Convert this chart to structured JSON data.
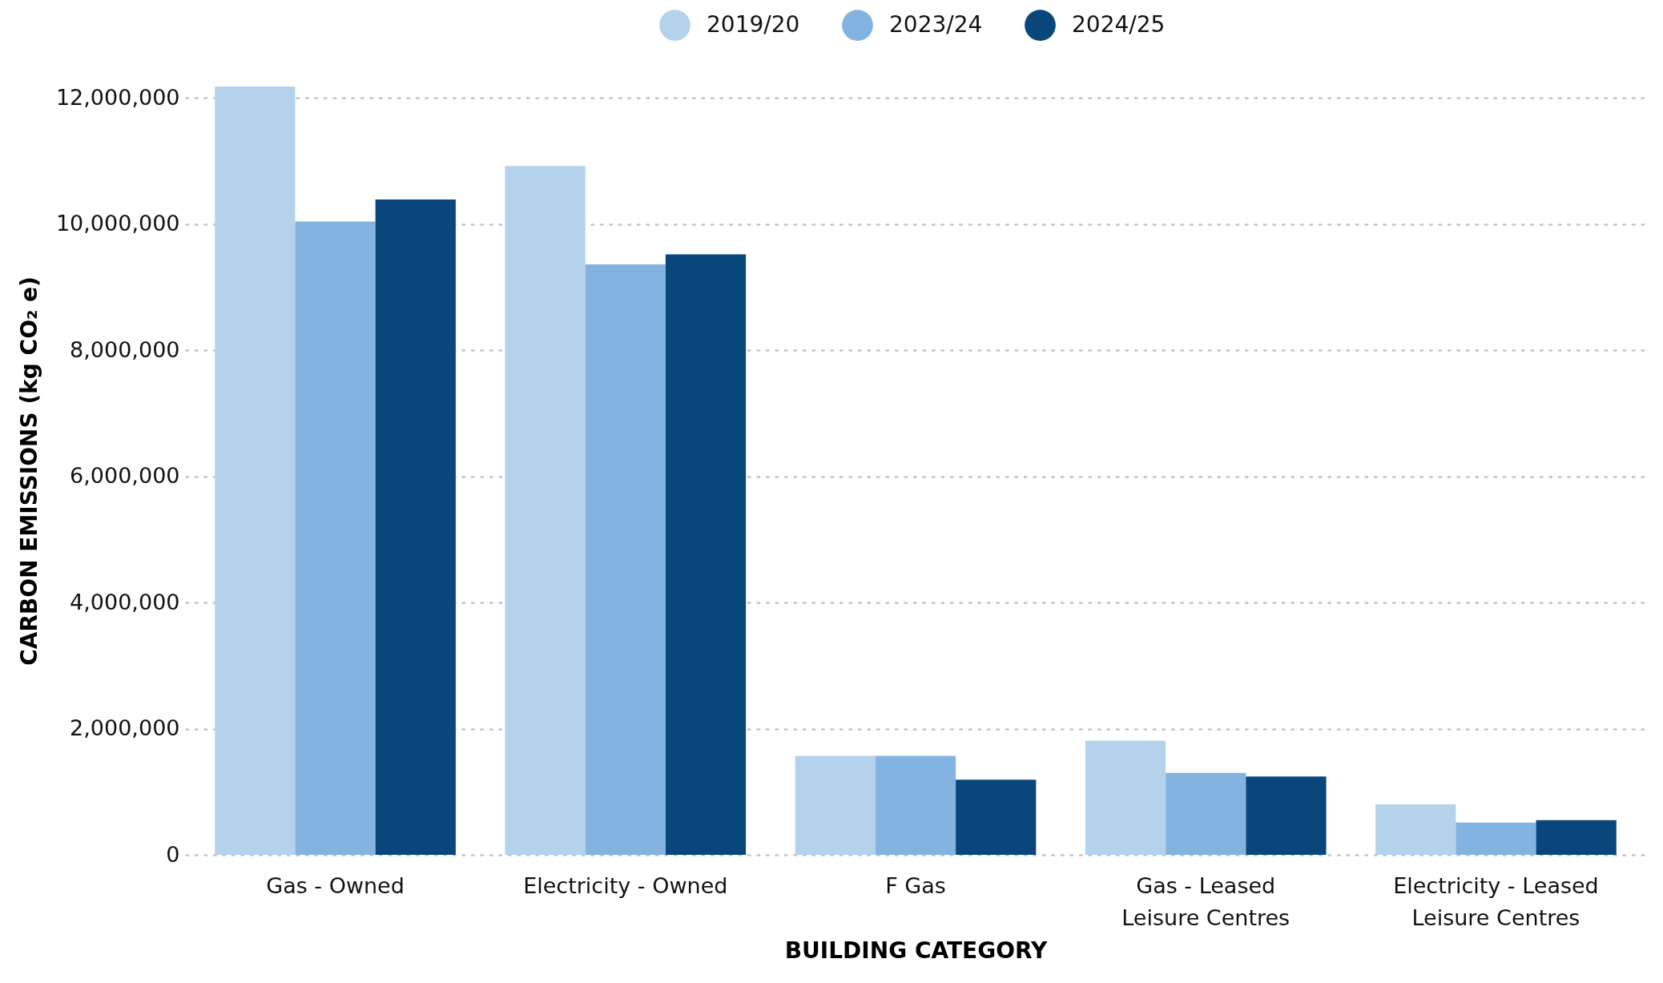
{
  "chart_data": {
    "type": "bar",
    "xlabel": "BUILDING CATEGORY",
    "ylabel": "CARBON EMISSIONS (kg CO₂ e)",
    "categories": [
      "Gas - Owned",
      "Electricity - Owned",
      "F Gas",
      "Gas - Leased Leisure Centres",
      "Electricity - Leased Leisure Centres"
    ],
    "series": [
      {
        "name": "2019/20",
        "color": "#b4d2ec",
        "values": [
          12180000,
          10920000,
          1570000,
          1810000,
          800000
        ]
      },
      {
        "name": "2023/24",
        "color": "#83b4e1",
        "values": [
          10040000,
          9360000,
          1570000,
          1300000,
          510000
        ]
      },
      {
        "name": "2024/25",
        "color": "#08467b",
        "values": [
          10390000,
          9520000,
          1190000,
          1240000,
          550000
        ]
      }
    ],
    "ylim": [
      0,
      12180000
    ],
    "yticks": [
      {
        "value": 0,
        "label": "0"
      },
      {
        "value": 2000000,
        "label": "2,000,000"
      },
      {
        "value": 4000000,
        "label": "4,000,000"
      },
      {
        "value": 6000000,
        "label": "6,000,000"
      },
      {
        "value": 8000000,
        "label": "8,000,000"
      },
      {
        "value": 10000000,
        "label": "10,000,000"
      },
      {
        "value": 12000000,
        "label": "12,000,000"
      }
    ],
    "grid": "y",
    "legend": "top"
  }
}
